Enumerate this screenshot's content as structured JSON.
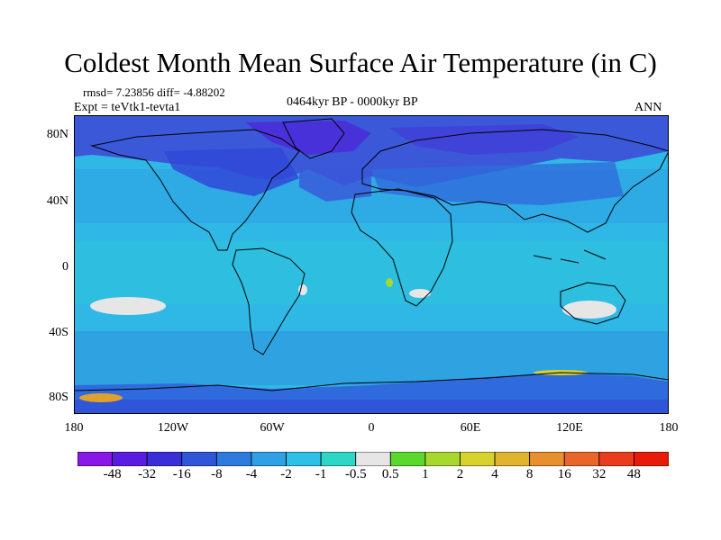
{
  "title": "Coldest Month Mean Surface Air Temperature (in C)",
  "stats": {
    "rmsd_diff": "rmsd= 7.23856 diff= -4.88202",
    "expt": "Expt = teVtk1-tevta1",
    "period": "0464kyr BP - 0000kyr BP",
    "season": "ANN"
  },
  "axes": {
    "lat_labels": [
      "80N",
      "40N",
      "0",
      "40S",
      "80S"
    ],
    "lon_labels": [
      "180",
      "120W",
      "60W",
      "0",
      "60E",
      "120E",
      "180"
    ]
  },
  "colorbar": {
    "labels": [
      "-48",
      "-32",
      "-16",
      "-8",
      "-4",
      "-2",
      "-1",
      "-0.5",
      "0.5",
      "1",
      "2",
      "4",
      "8",
      "16",
      "32",
      "48"
    ],
    "colors": [
      "#8a16e8",
      "#5a1ce0",
      "#3a2ed8",
      "#2f55d8",
      "#2e7bdf",
      "#2fa0e6",
      "#2ec0e6",
      "#2ed6c8",
      "#e6e6e6",
      "#5bd82e",
      "#a6d82e",
      "#d8d22e",
      "#e0b42e",
      "#e88f2e",
      "#e8662a",
      "#e83c1c",
      "#e81a0a"
    ]
  },
  "palette": {
    "ocean_base": "#2fb8e6",
    "cold_region": "#3a58d8",
    "very_cold": "#4a2ed8",
    "neutral": "#e6e6e6",
    "warm": "#e0a02e"
  }
}
